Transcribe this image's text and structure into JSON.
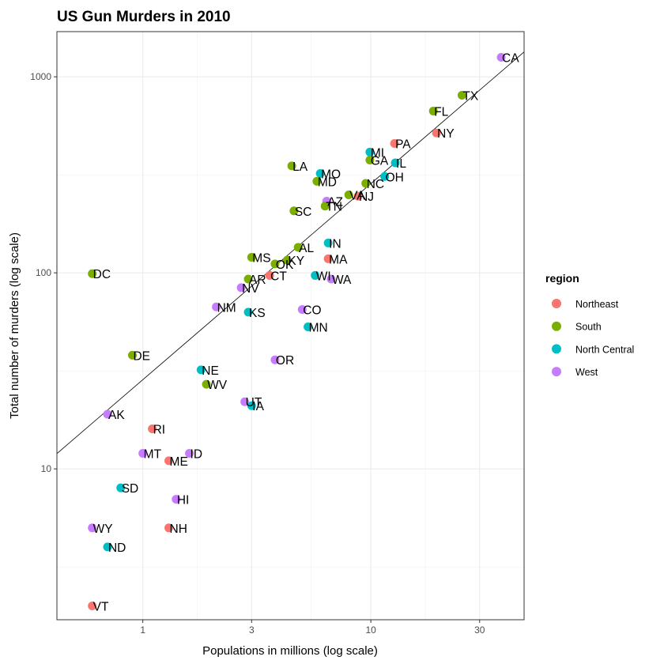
{
  "chart_data": {
    "type": "scatter",
    "title": "US Gun Murders in 2010",
    "xlabel": "Populations in millions (log scale)",
    "ylabel": "Total number of murders (log scale)",
    "x_scale": "log10",
    "y_scale": "log10",
    "xlim": [
      0.42,
      47
    ],
    "ylim": [
      1.7,
      1700
    ],
    "x_ticks": [
      1,
      3,
      10,
      30
    ],
    "x_tick_labels": [
      "1",
      "3",
      "10",
      "30"
    ],
    "y_ticks": [
      10,
      100,
      1000
    ],
    "y_tick_labels": [
      "10",
      "100",
      "1000"
    ],
    "grid": true,
    "reference_line": {
      "rate_per_million": 28.5
    },
    "legend": {
      "title": "region",
      "position": "right",
      "entries": [
        {
          "name": "Northeast",
          "color": "#F8766D"
        },
        {
          "name": "South",
          "color": "#7CAE00"
        },
        {
          "name": "North Central",
          "color": "#00BFC4"
        },
        {
          "name": "West",
          "color": "#C77CFF"
        }
      ]
    },
    "points": [
      {
        "label": "CA",
        "region": "West",
        "x": 37.3,
        "y": 1257
      },
      {
        "label": "TX",
        "region": "South",
        "x": 25.1,
        "y": 805
      },
      {
        "label": "FL",
        "region": "South",
        "x": 18.8,
        "y": 669
      },
      {
        "label": "NY",
        "region": "Northeast",
        "x": 19.4,
        "y": 517
      },
      {
        "label": "PA",
        "region": "Northeast",
        "x": 12.7,
        "y": 457
      },
      {
        "label": "MI",
        "region": "North Central",
        "x": 9.9,
        "y": 413
      },
      {
        "label": "GA",
        "region": "South",
        "x": 9.9,
        "y": 376
      },
      {
        "label": "IL",
        "region": "North Central",
        "x": 12.8,
        "y": 364
      },
      {
        "label": "LA",
        "region": "South",
        "x": 4.5,
        "y": 351
      },
      {
        "label": "MO",
        "region": "North Central",
        "x": 6.0,
        "y": 321
      },
      {
        "label": "OH",
        "region": "North Central",
        "x": 11.5,
        "y": 310
      },
      {
        "label": "MD",
        "region": "South",
        "x": 5.8,
        "y": 293
      },
      {
        "label": "NC",
        "region": "South",
        "x": 9.5,
        "y": 286
      },
      {
        "label": "VA",
        "region": "South",
        "x": 8.0,
        "y": 250
      },
      {
        "label": "NJ",
        "region": "Northeast",
        "x": 8.8,
        "y": 246
      },
      {
        "label": "AZ",
        "region": "West",
        "x": 6.4,
        "y": 232
      },
      {
        "label": "TN",
        "region": "South",
        "x": 6.3,
        "y": 219
      },
      {
        "label": "SC",
        "region": "South",
        "x": 4.6,
        "y": 207
      },
      {
        "label": "IN",
        "region": "North Central",
        "x": 6.5,
        "y": 142
      },
      {
        "label": "AL",
        "region": "South",
        "x": 4.8,
        "y": 135
      },
      {
        "label": "MS",
        "region": "South",
        "x": 3.0,
        "y": 120
      },
      {
        "label": "MA",
        "region": "Northeast",
        "x": 6.5,
        "y": 118
      },
      {
        "label": "OK",
        "region": "South",
        "x": 3.8,
        "y": 111
      },
      {
        "label": "KY",
        "region": "South",
        "x": 4.3,
        "y": 116
      },
      {
        "label": "DC",
        "region": "South",
        "x": 0.6,
        "y": 99
      },
      {
        "label": "WI",
        "region": "North Central",
        "x": 5.7,
        "y": 97
      },
      {
        "label": "CT",
        "region": "Northeast",
        "x": 3.6,
        "y": 97
      },
      {
        "label": "AR",
        "region": "South",
        "x": 2.9,
        "y": 93
      },
      {
        "label": "WA",
        "region": "West",
        "x": 6.7,
        "y": 93
      },
      {
        "label": "NV",
        "region": "West",
        "x": 2.7,
        "y": 84
      },
      {
        "label": "NM",
        "region": "West",
        "x": 2.1,
        "y": 67
      },
      {
        "label": "KS",
        "region": "North Central",
        "x": 2.9,
        "y": 63
      },
      {
        "label": "CO",
        "region": "West",
        "x": 5.0,
        "y": 65
      },
      {
        "label": "MN",
        "region": "North Central",
        "x": 5.3,
        "y": 53
      },
      {
        "label": "DE",
        "region": "South",
        "x": 0.9,
        "y": 38
      },
      {
        "label": "OR",
        "region": "West",
        "x": 3.8,
        "y": 36
      },
      {
        "label": "NE",
        "region": "North Central",
        "x": 1.8,
        "y": 32
      },
      {
        "label": "WV",
        "region": "South",
        "x": 1.9,
        "y": 27
      },
      {
        "label": "UT",
        "region": "West",
        "x": 2.8,
        "y": 22
      },
      {
        "label": "IA",
        "region": "North Central",
        "x": 3.0,
        "y": 21
      },
      {
        "label": "AK",
        "region": "West",
        "x": 0.7,
        "y": 19
      },
      {
        "label": "RI",
        "region": "Northeast",
        "x": 1.1,
        "y": 16
      },
      {
        "label": "MT",
        "region": "West",
        "x": 1.0,
        "y": 12
      },
      {
        "label": "ID",
        "region": "West",
        "x": 1.6,
        "y": 12
      },
      {
        "label": "ME",
        "region": "Northeast",
        "x": 1.3,
        "y": 11
      },
      {
        "label": "SD",
        "region": "North Central",
        "x": 0.8,
        "y": 8
      },
      {
        "label": "HI",
        "region": "West",
        "x": 1.4,
        "y": 7
      },
      {
        "label": "WY",
        "region": "West",
        "x": 0.6,
        "y": 5
      },
      {
        "label": "NH",
        "region": "Northeast",
        "x": 1.3,
        "y": 5
      },
      {
        "label": "ND",
        "region": "North Central",
        "x": 0.7,
        "y": 4
      },
      {
        "label": "VT",
        "region": "Northeast",
        "x": 0.6,
        "y": 2
      }
    ]
  }
}
